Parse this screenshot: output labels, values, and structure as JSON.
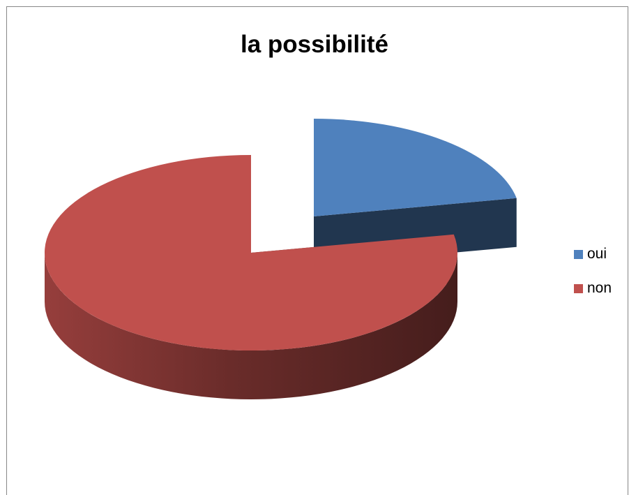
{
  "chart_data": {
    "type": "pie",
    "title": "la possibilité",
    "categories": [
      "oui",
      "non"
    ],
    "values": [
      22,
      78
    ],
    "colors": [
      "#4F81BD",
      "#C0504D"
    ],
    "legend_position": "right",
    "style": "3d-exploded"
  }
}
